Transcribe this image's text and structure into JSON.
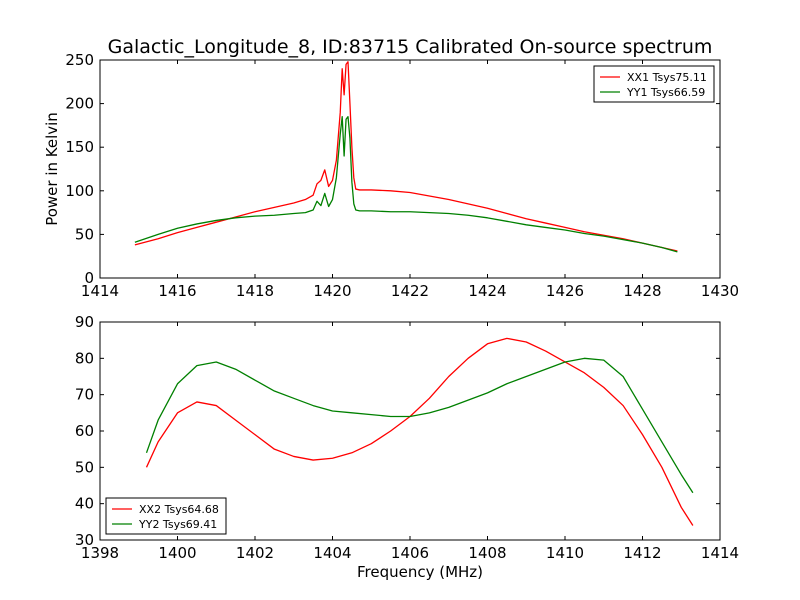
{
  "chart_data": [
    {
      "type": "line",
      "title": "Galactic_Longitude_8, ID:83715 Calibrated On-source spectrum",
      "xlabel": "",
      "ylabel": "Power in Kelvin",
      "xlim": [
        1414,
        1430
      ],
      "ylim": [
        0,
        250
      ],
      "xticks": [
        1414,
        1416,
        1418,
        1420,
        1422,
        1424,
        1426,
        1428,
        1430
      ],
      "yticks": [
        0,
        50,
        100,
        150,
        200,
        250
      ],
      "legend": "top-right",
      "series": [
        {
          "name": "XX1 Tsys75.11",
          "color": "#ff0000",
          "x": [
            1414.9,
            1415.5,
            1416,
            1416.5,
            1417,
            1417.5,
            1418,
            1418.5,
            1419,
            1419.3,
            1419.5,
            1419.6,
            1419.7,
            1419.8,
            1419.9,
            1420.0,
            1420.1,
            1420.2,
            1420.25,
            1420.3,
            1420.35,
            1420.4,
            1420.45,
            1420.5,
            1420.55,
            1420.6,
            1420.7,
            1421,
            1421.5,
            1422,
            1422.5,
            1423,
            1423.5,
            1424,
            1424.5,
            1425,
            1425.5,
            1426,
            1426.5,
            1427,
            1427.5,
            1428,
            1428.5,
            1428.9
          ],
          "y": [
            38,
            45,
            52,
            58,
            64,
            70,
            76,
            81,
            86,
            90,
            95,
            108,
            112,
            124,
            105,
            112,
            135,
            190,
            240,
            210,
            245,
            248,
            200,
            150,
            115,
            102,
            101,
            101,
            100,
            98,
            94,
            90,
            85,
            80,
            74,
            68,
            63,
            58,
            53,
            49,
            45,
            40,
            35,
            31
          ]
        },
        {
          "name": "YY1 Tsys66.59",
          "color": "#008000",
          "x": [
            1414.9,
            1415.5,
            1416,
            1416.5,
            1417,
            1417.5,
            1418,
            1418.5,
            1419,
            1419.3,
            1419.5,
            1419.6,
            1419.7,
            1419.8,
            1419.9,
            1420.0,
            1420.1,
            1420.2,
            1420.25,
            1420.3,
            1420.35,
            1420.4,
            1420.45,
            1420.5,
            1420.55,
            1420.6,
            1420.7,
            1421,
            1421.5,
            1422,
            1422.5,
            1423,
            1423.5,
            1424,
            1424.5,
            1425,
            1425.5,
            1426,
            1426.5,
            1427,
            1427.5,
            1428,
            1428.5,
            1428.9
          ],
          "y": [
            41,
            50,
            57,
            62,
            66,
            69,
            71,
            72,
            74,
            75,
            78,
            88,
            83,
            97,
            82,
            90,
            115,
            165,
            185,
            140,
            182,
            185,
            160,
            110,
            85,
            78,
            77,
            77,
            76,
            76,
            75,
            74,
            72,
            69,
            65,
            61,
            58,
            55,
            51,
            48,
            44,
            40,
            35,
            30
          ]
        }
      ]
    },
    {
      "type": "line",
      "title": "",
      "xlabel": "Frequency (MHz)",
      "ylabel": "",
      "xlim": [
        1398,
        1414
      ],
      "ylim": [
        30,
        90
      ],
      "xticks": [
        1398,
        1400,
        1402,
        1404,
        1406,
        1408,
        1410,
        1412,
        1414
      ],
      "yticks": [
        30,
        40,
        50,
        60,
        70,
        80,
        90
      ],
      "legend": "bottom-left",
      "series": [
        {
          "name": "XX2 Tsys64.68",
          "color": "#ff0000",
          "x": [
            1399.2,
            1399.5,
            1400.0,
            1400.5,
            1401.0,
            1401.5,
            1402.0,
            1402.5,
            1403.0,
            1403.5,
            1404.0,
            1404.5,
            1405.0,
            1405.5,
            1406.0,
            1406.5,
            1407.0,
            1407.5,
            1408.0,
            1408.5,
            1409.0,
            1409.5,
            1410.0,
            1410.5,
            1411.0,
            1411.5,
            1412.0,
            1412.5,
            1413.0,
            1413.3
          ],
          "y": [
            50,
            57,
            65,
            68,
            67,
            63,
            59,
            55,
            53,
            52,
            52.5,
            54,
            56.5,
            60,
            64,
            69,
            75,
            80,
            84,
            85.5,
            84.5,
            82,
            79,
            76,
            72,
            67,
            59,
            50,
            39,
            34
          ]
        },
        {
          "name": "YY2 Tsys69.41",
          "color": "#008000",
          "x": [
            1399.2,
            1399.5,
            1400.0,
            1400.5,
            1401.0,
            1401.5,
            1402.0,
            1402.5,
            1403.0,
            1403.5,
            1404.0,
            1404.5,
            1405.0,
            1405.5,
            1406.0,
            1406.5,
            1407.0,
            1407.5,
            1408.0,
            1408.5,
            1409.0,
            1409.5,
            1410.0,
            1410.5,
            1411.0,
            1411.5,
            1412.0,
            1412.5,
            1413.0,
            1413.3
          ],
          "y": [
            54,
            63,
            73,
            78,
            79,
            77,
            74,
            71,
            69,
            67,
            65.5,
            65,
            64.5,
            64,
            64,
            65,
            66.5,
            68.5,
            70.5,
            73,
            75,
            77,
            79,
            80,
            79.5,
            75,
            66,
            57,
            48,
            43
          ]
        }
      ]
    }
  ]
}
